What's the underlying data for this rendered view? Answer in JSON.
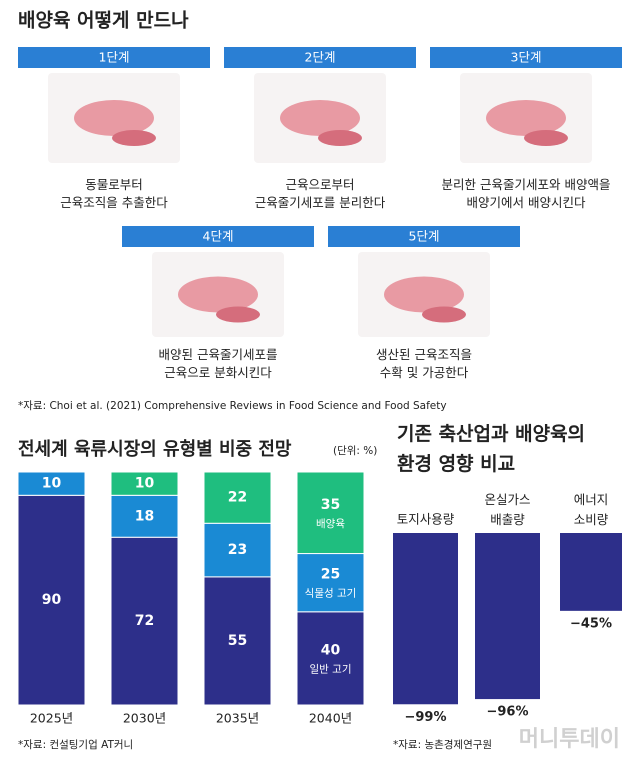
{
  "title": "배양육 어떻게 만드나",
  "steps": [
    {
      "label": "1단계",
      "description": "동물로부터\n근육조직을 추출한다"
    },
    {
      "label": "2단계",
      "description": "근육으로부터\n근육줄기세포를 분리한다"
    },
    {
      "label": "3단계",
      "description": "분리한 근육줄기세포와 배양액을\n배양기에서 배양시킨다"
    },
    {
      "label": "4단계",
      "description": "배양된 근육줄기세포를\n근육으로 분화시킨다"
    },
    {
      "label": "5단계",
      "description": "생산된 근육조직을\n수확 및 가공한다"
    }
  ],
  "source": "*자료: Choi et al. (2021) Comprehensive Reviews in Food Science and Food Safety",
  "watermark": "머니투데이",
  "chart_data": [
    {
      "type": "stacked_bar",
      "title": "전세계 육류시장의 유형별 비중 전망",
      "subtitle": "(단위: %)",
      "categories": [
        "2025년",
        "2030년",
        "2035년",
        "2040년"
      ],
      "series": [
        {
          "name": "일반 고기",
          "color": "#2d2f8a",
          "values": [
            90,
            72,
            55,
            40
          ]
        },
        {
          "name": "식물성 고기",
          "color": "#1a8ad4",
          "values": [
            10,
            18,
            23,
            25
          ]
        },
        {
          "name": "배양육",
          "color": "#1fbe7f",
          "values": [
            null,
            10,
            22,
            35
          ]
        }
      ],
      "ylim": [
        0,
        100
      ],
      "source": "*자료: 컨설팅기업 AT커니"
    },
    {
      "type": "bar",
      "title": "기존 축산업과 배양육의\n환경 영향 비교",
      "categories": [
        "토지사용량",
        "온실가스\n배출량",
        "에너지\n소비량"
      ],
      "values": [
        -99,
        -96,
        -45
      ],
      "value_labels": [
        "−99%",
        "−96%",
        "−45%"
      ],
      "color": "#2d2f8a",
      "ylim": [
        -100,
        0
      ],
      "source": "*자료: 농촌경제연구원"
    }
  ]
}
